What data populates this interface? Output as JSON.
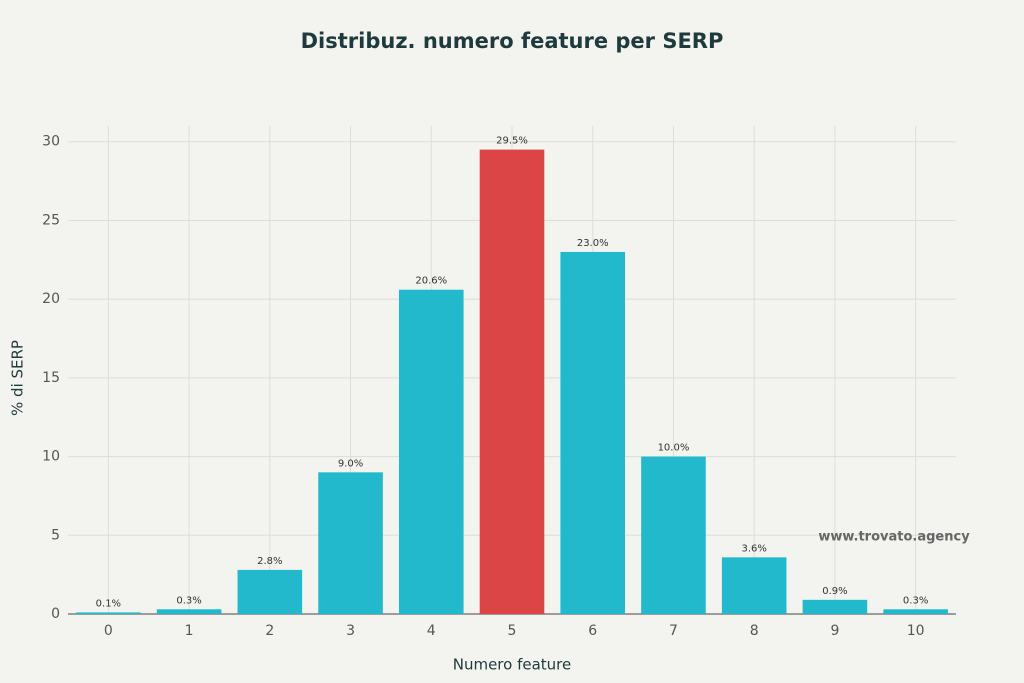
{
  "chart_data": {
    "type": "bar",
    "title": "Distribuz. numero feature per SERP",
    "x_label": "Numero feature",
    "y_label": "% di SERP",
    "categories": [
      "0",
      "1",
      "2",
      "3",
      "4",
      "5",
      "6",
      "7",
      "8",
      "9",
      "10"
    ],
    "values": [
      0.1,
      0.3,
      2.8,
      9.0,
      20.6,
      29.5,
      23.0,
      10.0,
      3.6,
      0.9,
      0.3
    ],
    "value_labels": [
      "0.1%",
      "0.3%",
      "2.8%",
      "9.0%",
      "20.6%",
      "29.5%",
      "23.0%",
      "10.0%",
      "3.6%",
      "0.9%",
      "0.3%"
    ],
    "colors": [
      "#22b9cc",
      "#22b9cc",
      "#22b9cc",
      "#22b9cc",
      "#22b9cc",
      "#db4545",
      "#22b9cc",
      "#22b9cc",
      "#22b9cc",
      "#22b9cc",
      "#22b9cc"
    ],
    "ylim": [
      0,
      31
    ],
    "yticks": [
      0,
      5,
      10,
      15,
      20,
      25,
      30
    ],
    "grid": true,
    "annotation": "www.trovato.agency"
  }
}
